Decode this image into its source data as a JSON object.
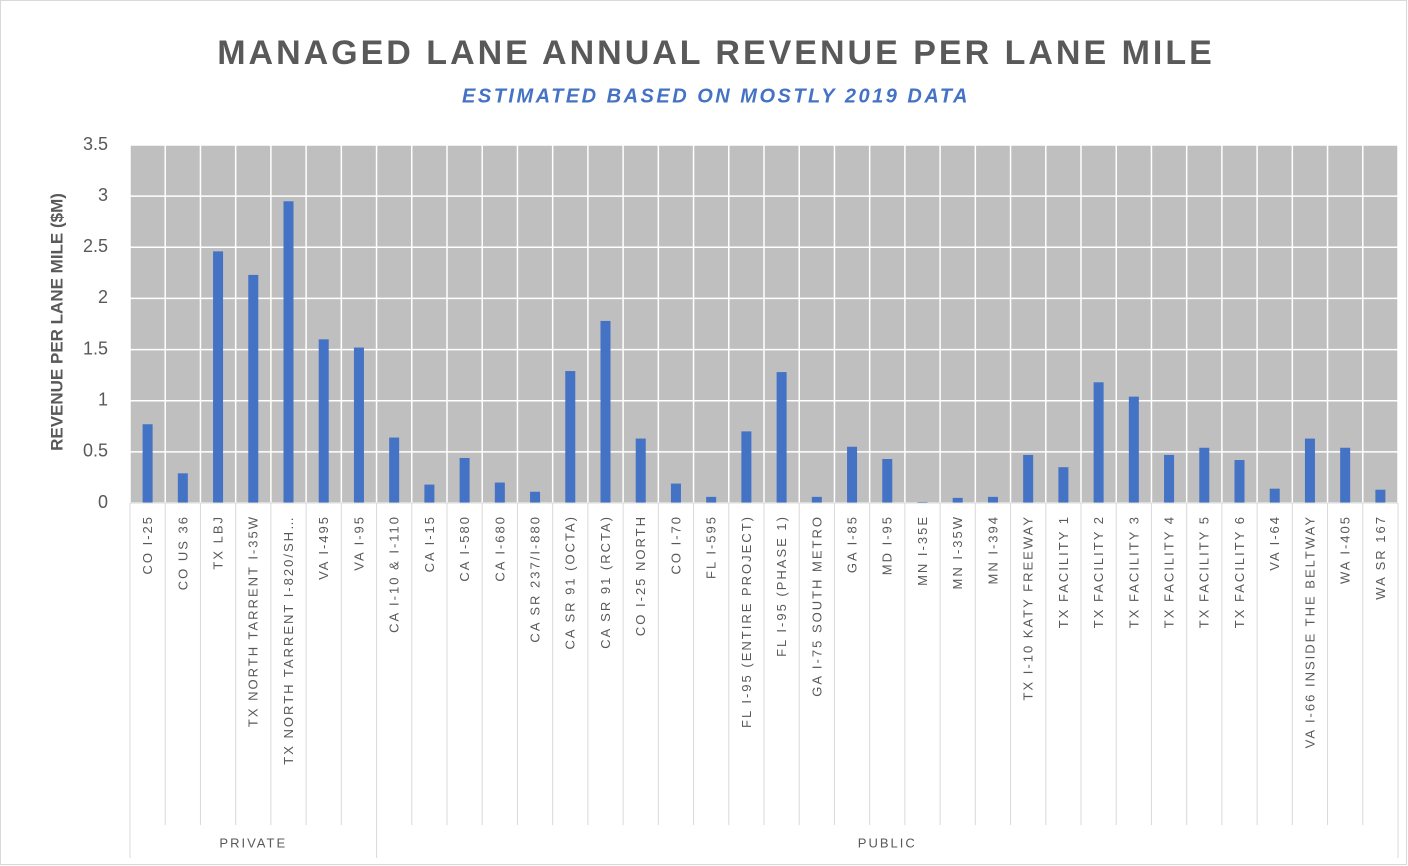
{
  "chart_data": {
    "type": "bar",
    "title": "MANAGED LANE ANNUAL REVENUE PER LANE MILE",
    "subtitle": "ESTIMATED BASED ON MOSTLY 2019 DATA",
    "y_label": "REVENUE PER LANE MILE ($M)",
    "color": "#4472c4",
    "ylim": [
      0,
      3.5
    ],
    "yticks": [
      0,
      0.5,
      1,
      1.5,
      2,
      2.5,
      3,
      3.5
    ],
    "grid": true,
    "groups": [
      {
        "name": "PRIVATE",
        "categories": [
          "CO I-25",
          "CO US 36",
          "TX LBJ",
          "TX NORTH TARRENT I-35W",
          "TX NORTH TARRENT I-820/SH…",
          "VA I-495",
          "VA I-95"
        ],
        "values": [
          0.77,
          0.29,
          2.46,
          2.23,
          2.95,
          1.6,
          1.52
        ]
      },
      {
        "name": "PUBLIC",
        "categories": [
          "CA I-10 & I-110",
          "CA I-15",
          "CA I-580",
          "CA I-680",
          "CA SR 237/I-880",
          "CA SR 91 (OCTA)",
          "CA SR 91 (RCTA)",
          "CO I-25 NORTH",
          "CO I-70",
          "FL I-595",
          "FL I-95 (ENTIRE PROJECT)",
          "FL I-95 (PHASE 1)",
          "GA I-75 SOUTH METRO",
          "GA I-85",
          "MD I-95",
          "MN I-35E",
          "MN I-35W",
          "MN I-394",
          "TX I-10 KATY FREEWAY",
          "TX FACILITY 1",
          "TX FACILITY 2",
          "TX FACILITY 3",
          "TX FACILITY 4",
          "TX FACILITY 5",
          "TX FACILITY 6",
          "VA I-64",
          "VA I-66 INSIDE THE BELTWAY",
          "WA I-405",
          "WA SR 167"
        ],
        "values": [
          0.64,
          0.18,
          0.44,
          0.2,
          0.11,
          1.29,
          1.78,
          0.63,
          0.19,
          0.06,
          0.7,
          1.28,
          0.06,
          0.55,
          0.43,
          0.01,
          0.05,
          0.06,
          0.47,
          0.35,
          1.18,
          1.04,
          0.47,
          0.54,
          0.42,
          0.14,
          0.63,
          0.54,
          0.13
        ]
      }
    ]
  }
}
